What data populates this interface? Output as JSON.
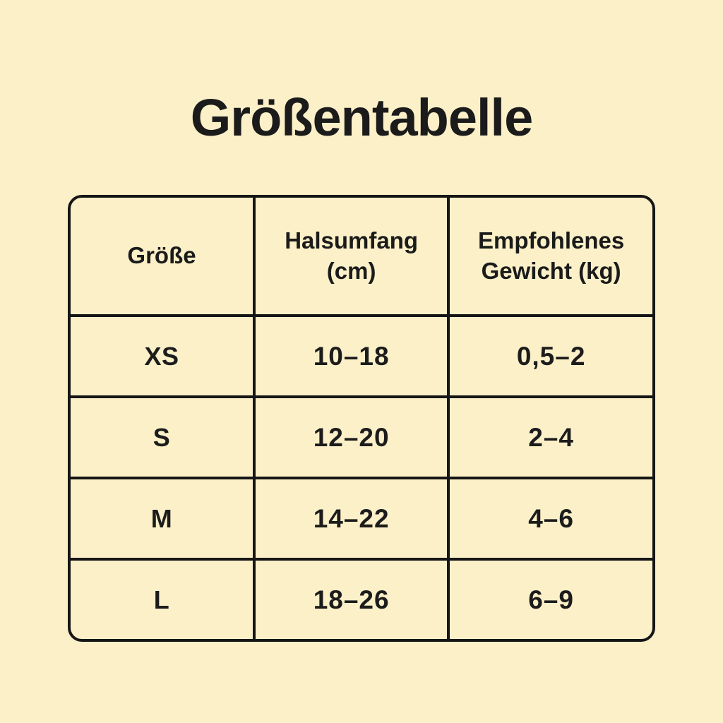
{
  "page": {
    "background_color": "#FCF0C8",
    "text_color": "#1B1B1B",
    "border_color": "#161616",
    "title": "Größentabelle"
  },
  "chart_data": {
    "type": "table",
    "title": "Größentabelle",
    "columns": [
      "Größe",
      "Halsumfang (cm)",
      "Empfohlenes Gewicht (kg)"
    ],
    "rows": [
      [
        "XS",
        "10–18",
        "0,5–2"
      ],
      [
        "S",
        "12–20",
        "2–4"
      ],
      [
        "M",
        "14–22",
        "4–6"
      ],
      [
        "L",
        "18–26",
        "6–9"
      ]
    ],
    "notes": {
      "column_1_unit": "cm",
      "column_2_unit": "kg",
      "decimal_format": "comma"
    }
  }
}
